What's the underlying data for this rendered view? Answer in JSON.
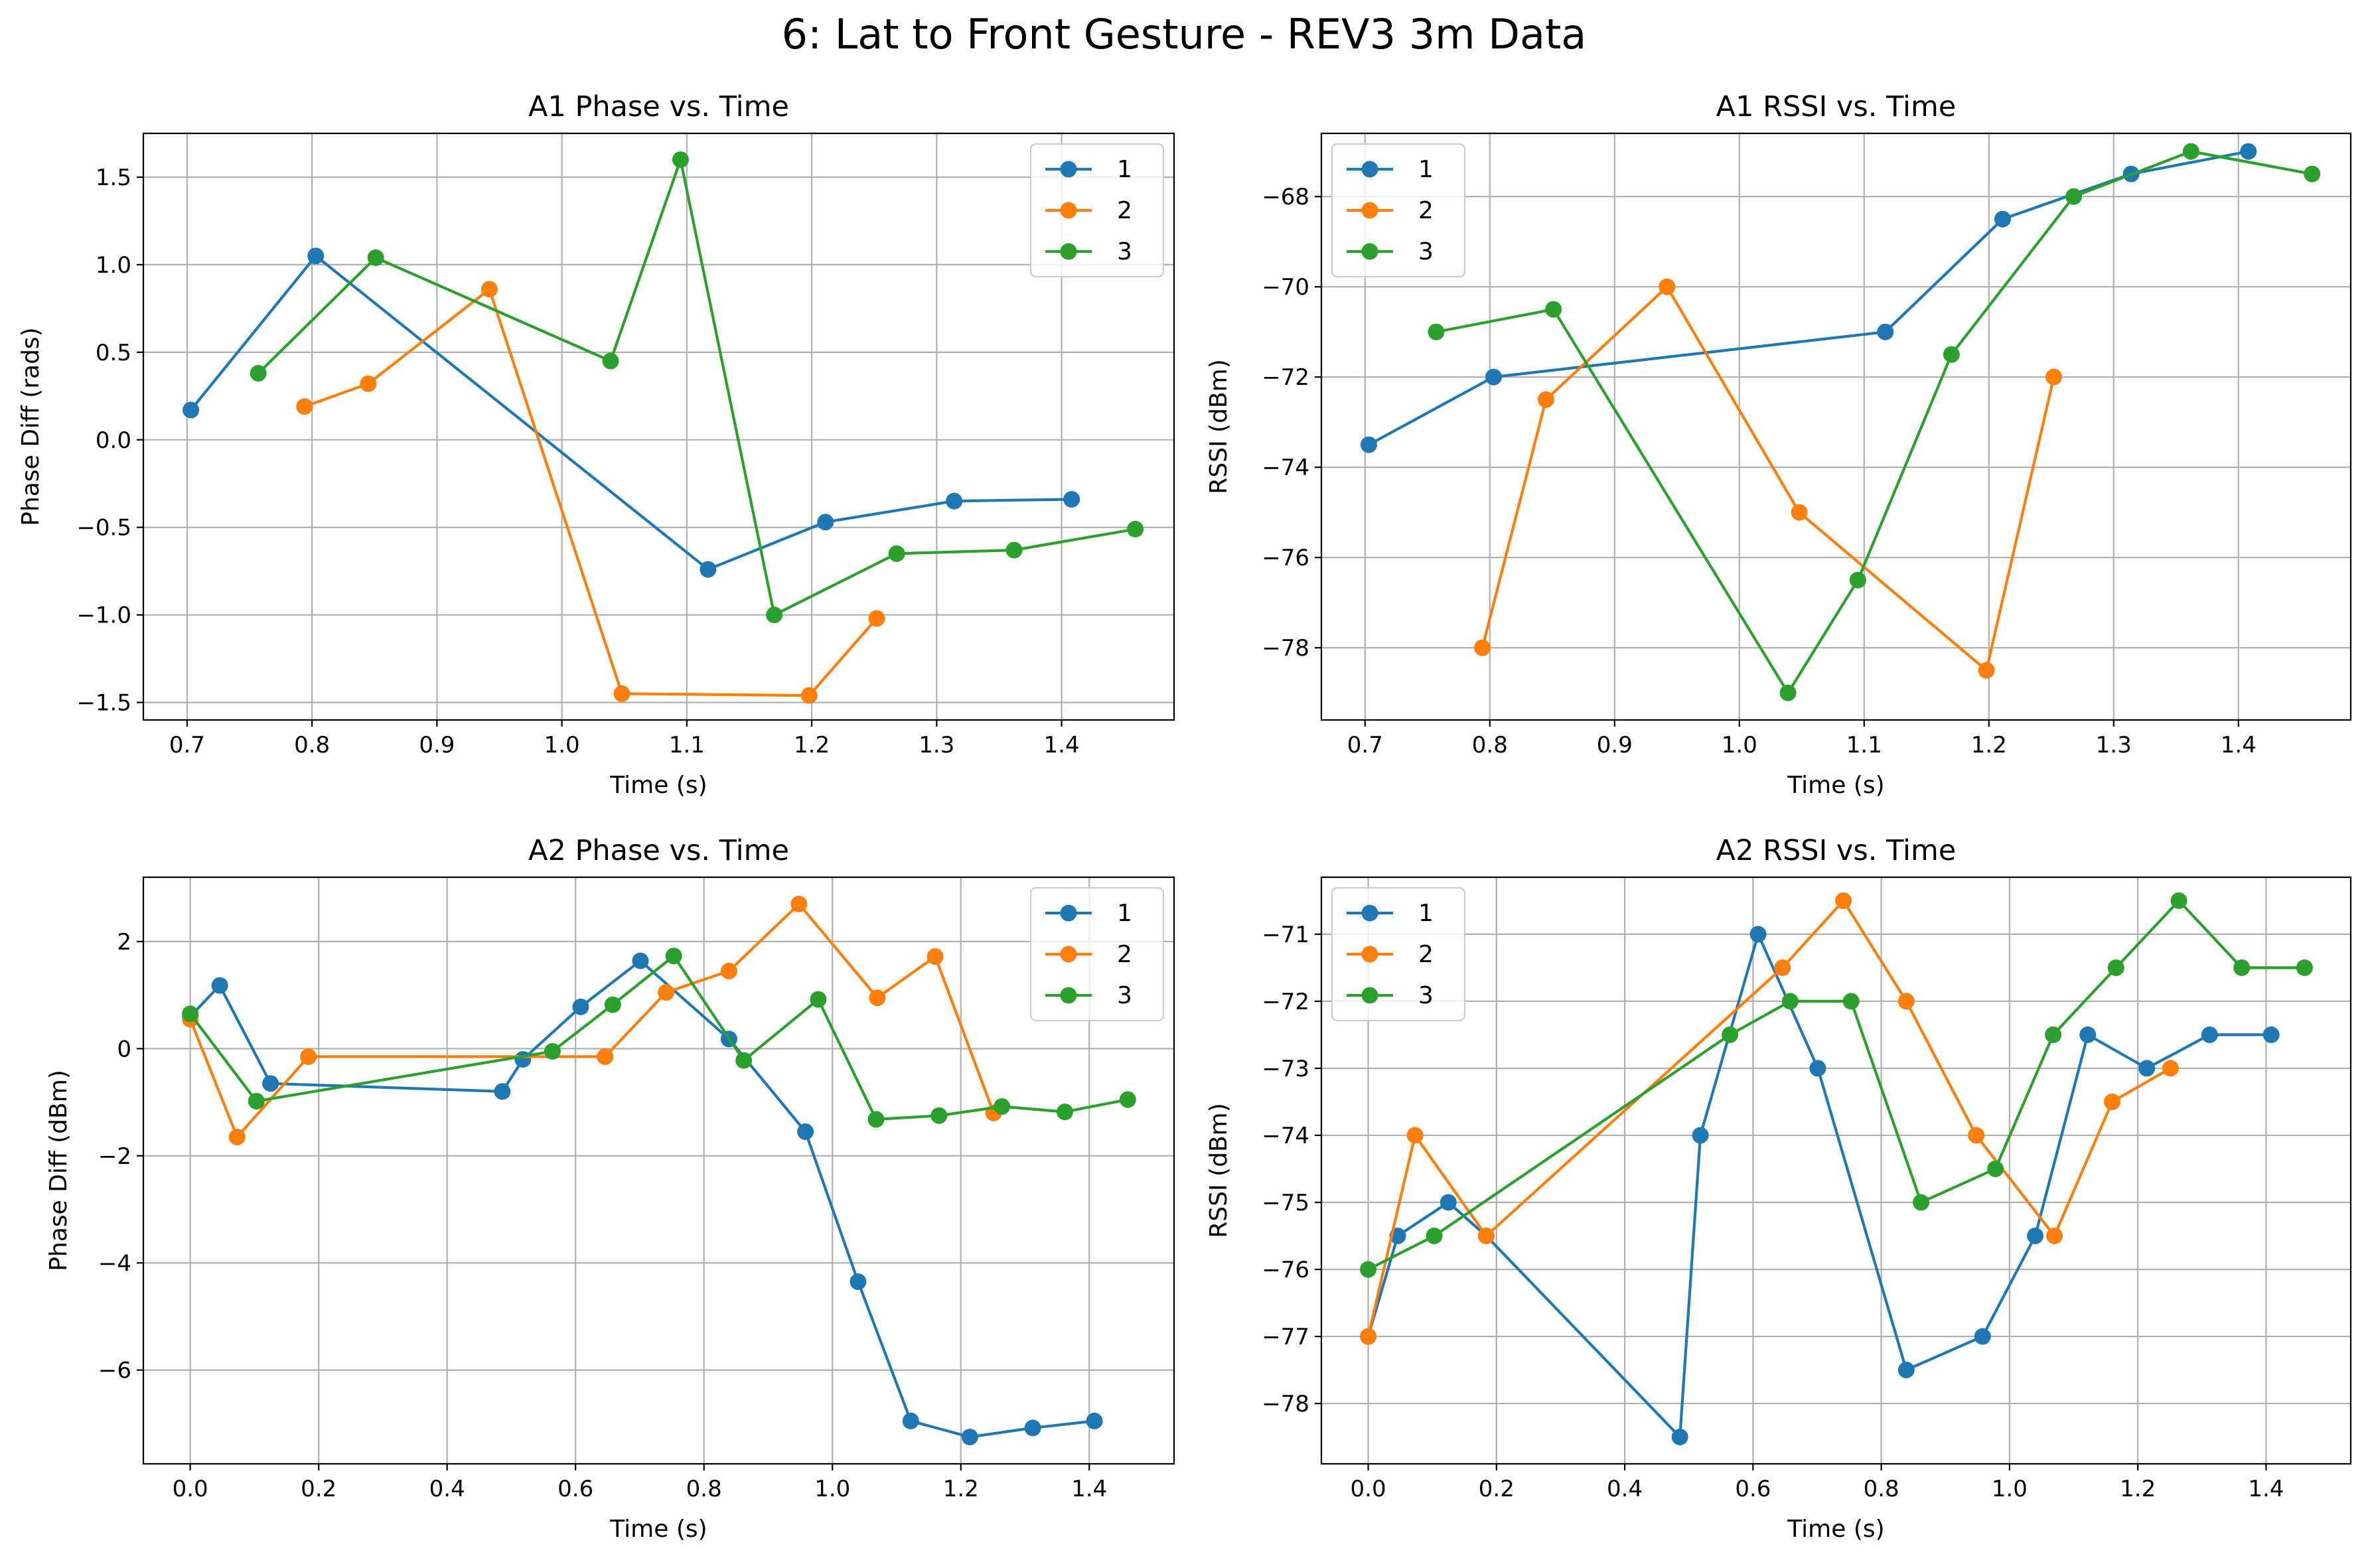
{
  "suptitle": "6: Lat to Front Gesture - REV3 3m Data",
  "colors": {
    "1": "#1f77b4",
    "2": "#ff7f0e",
    "3": "#2ca02c",
    "grid": "#b0b0b0",
    "axes": "#000000"
  },
  "chart_data": [
    {
      "type": "line",
      "title": "A1 Phase vs. Time",
      "xlabel": "Time (s)",
      "ylabel": "Phase Diff (rads)",
      "xlim": [
        0.665,
        1.49
      ],
      "ylim": [
        -1.6,
        1.75
      ],
      "xticks": [
        0.7,
        0.8,
        0.9,
        1.0,
        1.1,
        1.2,
        1.3,
        1.4
      ],
      "xtick_labels": [
        "0.7",
        "0.8",
        "0.9",
        "1.0",
        "1.1",
        "1.2",
        "1.3",
        "1.4"
      ],
      "yticks": [
        -1.5,
        -1.0,
        -0.5,
        0.0,
        0.5,
        1.0,
        1.5
      ],
      "ytick_labels": [
        "−1.5",
        "−1.0",
        "−0.5",
        "0.0",
        "0.5",
        "1.0",
        "1.5"
      ],
      "grid": true,
      "legend": "top-right",
      "series": [
        {
          "name": "1",
          "color": "#1f77b4",
          "x": [
            0.703,
            0.803,
            1.117,
            1.211,
            1.314,
            1.408
          ],
          "y": [
            0.17,
            1.05,
            -0.74,
            -0.47,
            -0.35,
            -0.34
          ]
        },
        {
          "name": "2",
          "color": "#ff7f0e",
          "x": [
            0.794,
            0.845,
            0.942,
            1.048,
            1.198,
            1.252
          ],
          "y": [
            0.19,
            0.32,
            0.86,
            -1.45,
            -1.46,
            -1.02
          ]
        },
        {
          "name": "3",
          "color": "#2ca02c",
          "x": [
            0.757,
            0.851,
            1.039,
            1.095,
            1.17,
            1.268,
            1.362,
            1.459
          ],
          "y": [
            0.38,
            1.04,
            0.45,
            1.6,
            -1.0,
            -0.65,
            -0.63,
            -0.51
          ]
        }
      ]
    },
    {
      "type": "line",
      "title": "A1 RSSI vs. Time",
      "xlabel": "Time (s)",
      "ylabel": "RSSI (dBm)",
      "xlim": [
        0.665,
        1.49
      ],
      "ylim": [
        -79.6,
        -66.6
      ],
      "xticks": [
        0.7,
        0.8,
        0.9,
        1.0,
        1.1,
        1.2,
        1.3,
        1.4
      ],
      "xtick_labels": [
        "0.7",
        "0.8",
        "0.9",
        "1.0",
        "1.1",
        "1.2",
        "1.3",
        "1.4"
      ],
      "yticks": [
        -78,
        -76,
        -74,
        -72,
        -70,
        -68
      ],
      "ytick_labels": [
        "−78",
        "−76",
        "−74",
        "−72",
        "−70",
        "−68"
      ],
      "grid": true,
      "legend": "top-left",
      "series": [
        {
          "name": "1",
          "color": "#1f77b4",
          "x": [
            0.703,
            0.803,
            1.117,
            1.211,
            1.314,
            1.408
          ],
          "y": [
            -73.5,
            -72,
            -71,
            -68.5,
            -67.5,
            -67
          ]
        },
        {
          "name": "2",
          "color": "#ff7f0e",
          "x": [
            0.794,
            0.845,
            0.942,
            1.048,
            1.198,
            1.252
          ],
          "y": [
            -78,
            -72.5,
            -70,
            -75,
            -78.5,
            -72
          ]
        },
        {
          "name": "3",
          "color": "#2ca02c",
          "x": [
            0.757,
            0.851,
            1.039,
            1.095,
            1.17,
            1.268,
            1.362,
            1.459
          ],
          "y": [
            -71,
            -70.5,
            -79,
            -76.5,
            -71.5,
            -68,
            -67,
            -67.5
          ]
        }
      ]
    },
    {
      "type": "line",
      "title": "A2 Phase vs. Time",
      "xlabel": "Time (s)",
      "ylabel": "Phase Diff (dBm)",
      "xlim": [
        -0.073,
        1.532
      ],
      "ylim": [
        -7.75,
        3.2
      ],
      "xticks": [
        0.0,
        0.2,
        0.4,
        0.6,
        0.8,
        1.0,
        1.2,
        1.4
      ],
      "xtick_labels": [
        "0.0",
        "0.2",
        "0.4",
        "0.6",
        "0.8",
        "1.0",
        "1.2",
        "1.4"
      ],
      "yticks": [
        -6,
        -4,
        -2,
        0,
        2
      ],
      "ytick_labels": [
        "−6",
        "−4",
        "−2",
        "0",
        "2"
      ],
      "grid": true,
      "legend": "top-right",
      "series": [
        {
          "name": "1",
          "color": "#1f77b4",
          "x": [
            0.0,
            0.046,
            0.125,
            0.486,
            0.518,
            0.608,
            0.701,
            0.839,
            0.958,
            1.04,
            1.122,
            1.214,
            1.312,
            1.408
          ],
          "y": [
            0.6,
            1.18,
            -0.65,
            -0.8,
            -0.2,
            0.78,
            1.64,
            0.18,
            -1.55,
            -4.35,
            -6.95,
            -7.25,
            -7.08,
            -6.95
          ]
        },
        {
          "name": "2",
          "color": "#ff7f0e",
          "x": [
            0.0,
            0.073,
            0.184,
            0.646,
            0.741,
            0.839,
            0.948,
            1.07,
            1.16,
            1.251
          ],
          "y": [
            0.55,
            -1.65,
            -0.15,
            -0.15,
            1.05,
            1.45,
            2.7,
            0.95,
            1.72,
            -1.2
          ]
        },
        {
          "name": "3",
          "color": "#2ca02c",
          "x": [
            0.0,
            0.103,
            0.564,
            0.658,
            0.753,
            0.862,
            0.978,
            1.068,
            1.166,
            1.264,
            1.362,
            1.46
          ],
          "y": [
            0.65,
            -0.98,
            -0.05,
            0.82,
            1.73,
            -0.22,
            0.92,
            -1.32,
            -1.25,
            -1.08,
            -1.18,
            -0.95
          ]
        }
      ]
    },
    {
      "type": "line",
      "title": "A2 RSSI vs. Time",
      "xlabel": "Time (s)",
      "ylabel": "RSSI (dBm)",
      "xlim": [
        -0.073,
        1.532
      ],
      "ylim": [
        -78.9,
        -70.15
      ],
      "xticks": [
        0.0,
        0.2,
        0.4,
        0.6,
        0.8,
        1.0,
        1.2,
        1.4
      ],
      "xtick_labels": [
        "0.0",
        "0.2",
        "0.4",
        "0.6",
        "0.8",
        "1.0",
        "1.2",
        "1.4"
      ],
      "yticks": [
        -78,
        -77,
        -76,
        -75,
        -74,
        -73,
        -72,
        -71
      ],
      "ytick_labels": [
        "−78",
        "−77",
        "−76",
        "−75",
        "−74",
        "−73",
        "−72",
        "−71"
      ],
      "grid": true,
      "legend": "top-left",
      "series": [
        {
          "name": "1",
          "color": "#1f77b4",
          "x": [
            0.0,
            0.046,
            0.125,
            0.184,
            0.486,
            0.518,
            0.608,
            0.701,
            0.839,
            0.958,
            1.04,
            1.122,
            1.214,
            1.312,
            1.408
          ],
          "y": [
            -77,
            -75.5,
            -75,
            -75.5,
            -78.5,
            -74,
            -71,
            -73,
            -77.5,
            -77,
            -75.5,
            -72.5,
            -73,
            -72.5,
            -72.5
          ]
        },
        {
          "name": "2",
          "color": "#ff7f0e",
          "x": [
            0.0,
            0.073,
            0.184,
            0.646,
            0.741,
            0.839,
            0.948,
            1.07,
            1.16,
            1.251
          ],
          "y": [
            -77,
            -74,
            -75.5,
            -71.5,
            -70.5,
            -72,
            -74,
            -75.5,
            -73.5,
            -73
          ]
        },
        {
          "name": "3",
          "color": "#2ca02c",
          "x": [
            0.0,
            0.103,
            0.564,
            0.658,
            0.753,
            0.862,
            0.978,
            1.068,
            1.166,
            1.264,
            1.362,
            1.46
          ],
          "y": [
            -76,
            -75.5,
            -72.5,
            -72,
            -72,
            -75,
            -74.5,
            -72.5,
            -71.5,
            -70.5,
            -71.5,
            -71.5
          ]
        }
      ]
    }
  ]
}
